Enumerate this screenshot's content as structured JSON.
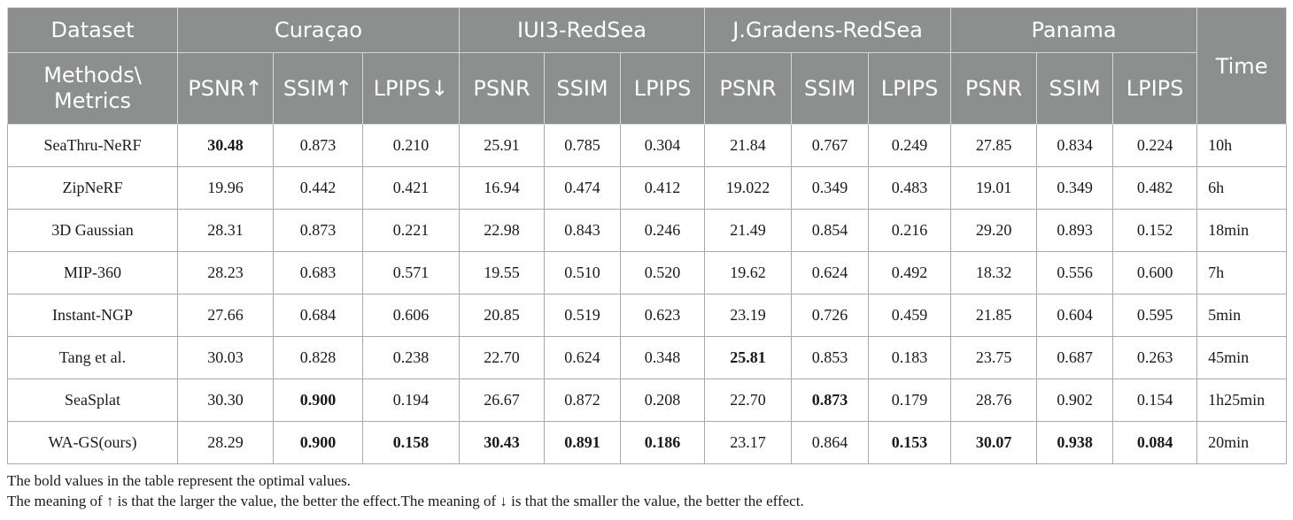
{
  "header": {
    "dataset_label": "Dataset",
    "methods_label": "Methods\\ Metrics",
    "time_label": "Time",
    "datasets": [
      {
        "name": "Curaçao",
        "metrics": [
          "PSNR↑",
          "SSIM↑",
          "LPIPS↓"
        ]
      },
      {
        "name": "IUI3-RedSea",
        "metrics": [
          "PSNR",
          "SSIM",
          "LPIPS"
        ]
      },
      {
        "name": "J.Gradens-RedSea",
        "metrics": [
          "PSNR",
          "SSIM",
          "LPIPS"
        ]
      },
      {
        "name": "Panama",
        "metrics": [
          "PSNR",
          "SSIM",
          "LPIPS"
        ]
      }
    ]
  },
  "rows": [
    {
      "method": "SeaThru-NeRF",
      "values": [
        "30.48",
        "0.873",
        "0.210",
        "25.91",
        "0.785",
        "0.304",
        "21.84",
        "0.767",
        "0.249",
        "27.85",
        "0.834",
        "0.224"
      ],
      "bold": [
        0
      ],
      "time": "10h"
    },
    {
      "method": "ZipNeRF",
      "values": [
        "19.96",
        "0.442",
        "0.421",
        "16.94",
        "0.474",
        "0.412",
        "19.022",
        "0.349",
        "0.483",
        "19.01",
        "0.349",
        "0.482"
      ],
      "bold": [],
      "time": "6h"
    },
    {
      "method": "3D Gaussian",
      "values": [
        "28.31",
        "0.873",
        "0.221",
        "22.98",
        "0.843",
        "0.246",
        "21.49",
        "0.854",
        "0.216",
        "29.20",
        "0.893",
        "0.152"
      ],
      "bold": [],
      "time": "18min"
    },
    {
      "method": "MIP-360",
      "values": [
        "28.23",
        "0.683",
        "0.571",
        "19.55",
        "0.510",
        "0.520",
        "19.62",
        "0.624",
        "0.492",
        "18.32",
        "0.556",
        "0.600"
      ],
      "bold": [],
      "time": "7h"
    },
    {
      "method": "Instant-NGP",
      "values": [
        "27.66",
        "0.684",
        "0.606",
        "20.85",
        "0.519",
        "0.623",
        "23.19",
        "0.726",
        "0.459",
        "21.85",
        "0.604",
        "0.595"
      ],
      "bold": [],
      "time": "5min"
    },
    {
      "method": "Tang et al.",
      "values": [
        "30.03",
        "0.828",
        "0.238",
        "22.70",
        "0.624",
        "0.348",
        "25.81",
        "0.853",
        "0.183",
        "23.75",
        "0.687",
        "0.263"
      ],
      "bold": [
        6
      ],
      "time": "45min"
    },
    {
      "method": "SeaSplat",
      "values": [
        "30.30",
        "0.900",
        "0.194",
        "26.67",
        "0.872",
        "0.208",
        "22.70",
        "0.873",
        "0.179",
        "28.76",
        "0.902",
        "0.154"
      ],
      "bold": [
        1,
        7
      ],
      "time": "1h25min"
    },
    {
      "method": "WA-GS(ours)",
      "values": [
        "28.29",
        "0.900",
        "0.158",
        "30.43",
        "0.891",
        "0.186",
        "23.17",
        "0.864",
        "0.153",
        "30.07",
        "0.938",
        "0.084"
      ],
      "bold": [
        1,
        2,
        3,
        4,
        5,
        8,
        9,
        10,
        11
      ],
      "time": "20min"
    }
  ],
  "notes": [
    "The bold values in the table represent the optimal values.",
    "The meaning of ↑ is that the larger the value, the better the effect.The meaning of ↓ is that the smaller the value, the better the effect."
  ]
}
